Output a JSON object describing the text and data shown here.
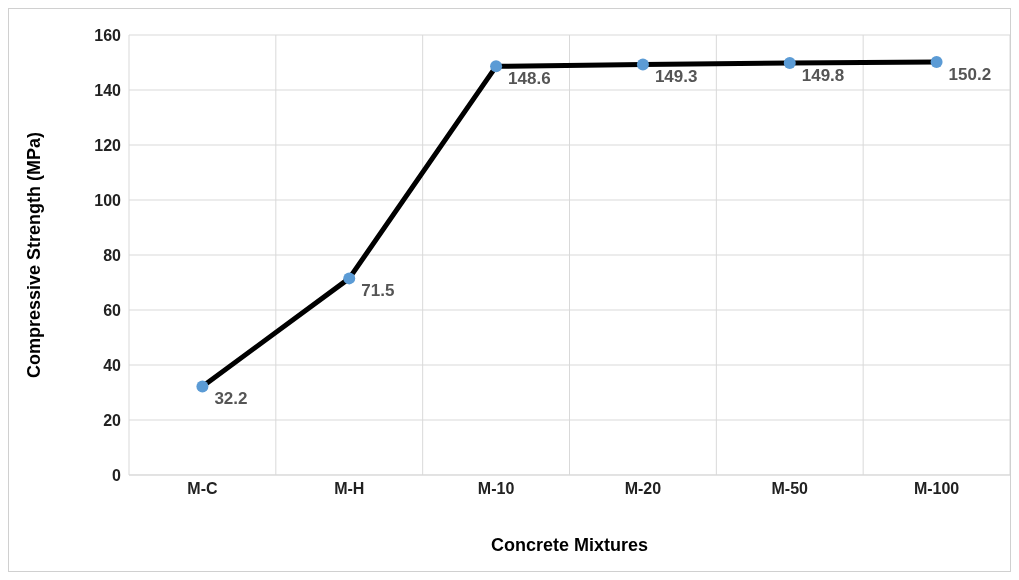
{
  "chart_data": {
    "type": "line",
    "xlabel": "Concrete Mixtures",
    "ylabel": "Compressive Strength (MPa)",
    "categories": [
      "M-C",
      "M-H",
      "M-10",
      "M-20",
      "M-50",
      "M-100"
    ],
    "series": [
      {
        "color": "#000000",
        "values": [
          32.2,
          71.5,
          148.6,
          149.3,
          149.8,
          150.2
        ]
      }
    ],
    "marker": "circle",
    "line_style": "solid",
    "ylim": [
      0,
      160
    ],
    "yticks": [
      0,
      20,
      40,
      60,
      80,
      100,
      120,
      140,
      160
    ],
    "grid": true,
    "data_labels": true,
    "legend": false
  }
}
